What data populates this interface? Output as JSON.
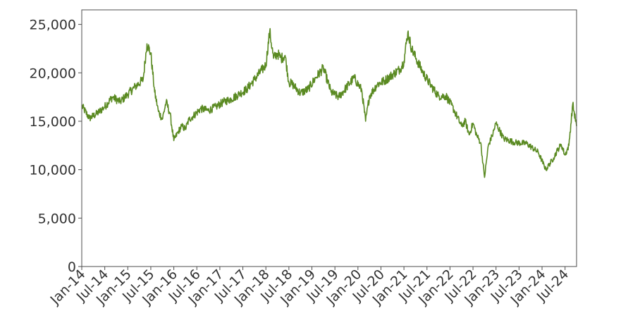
{
  "chart_data": {
    "type": "line",
    "title": "",
    "xlabel": "",
    "ylabel": "",
    "grid": false,
    "legend": "none",
    "line_color": "#5a8a22",
    "x_range": [
      "2014-01",
      "2024-10"
    ],
    "ylim": [
      0,
      26500
    ],
    "y_ticks": [
      0,
      5000,
      10000,
      15000,
      20000,
      25000
    ],
    "y_tick_labels": [
      "0",
      "5,000",
      "10,000",
      "15,000",
      "20,000",
      "25,000"
    ],
    "x_tick_labels": [
      "Jan-14",
      "Jul-14",
      "Jan-15",
      "Jul-15",
      "Jan-16",
      "Jul-16",
      "Jan-17",
      "Jul-17",
      "Jan-18",
      "Jul-18",
      "Jan-19",
      "Jul-19",
      "Jan-20",
      "Jul-20",
      "Jan-21",
      "Jul-21",
      "Jan-22",
      "Jul-22",
      "Jan-23",
      "Jul-23",
      "Jan-24",
      "Jul-24"
    ],
    "series": [
      {
        "x": [
          "2014-01",
          "2014-03",
          "2014-05",
          "2014-07",
          "2014-09",
          "2014-11",
          "2015-01",
          "2015-03",
          "2015-05",
          "2015-06",
          "2015-07",
          "2015-08",
          "2015-09",
          "2015-10",
          "2015-11",
          "2015-12",
          "2016-01",
          "2016-02",
          "2016-03",
          "2016-04",
          "2016-05",
          "2016-06",
          "2016-08",
          "2016-10",
          "2016-12",
          "2017-02",
          "2017-04",
          "2017-06",
          "2017-08",
          "2017-10",
          "2017-12",
          "2018-01",
          "2018-02",
          "2018-03",
          "2018-04",
          "2018-05",
          "2018-06",
          "2018-07",
          "2018-08",
          "2018-10",
          "2018-12",
          "2019-02",
          "2019-04",
          "2019-06",
          "2019-08",
          "2019-10",
          "2019-12",
          "2020-02",
          "2020-03",
          "2020-04",
          "2020-06",
          "2020-08",
          "2020-10",
          "2020-12",
          "2021-01",
          "2021-02",
          "2021-03",
          "2021-04",
          "2021-06",
          "2021-08",
          "2021-10",
          "2021-12",
          "2022-02",
          "2022-04",
          "2022-05",
          "2022-06",
          "2022-07",
          "2022-08",
          "2022-09",
          "2022-10",
          "2022-11",
          "2022-12",
          "2023-01",
          "2023-03",
          "2023-06",
          "2023-09",
          "2023-12",
          "2024-02",
          "2024-04",
          "2024-05",
          "2024-06",
          "2024-07",
          "2024-08",
          "2024-09",
          "2024-10"
        ],
        "y": [
          16600,
          15300,
          15800,
          16500,
          17500,
          17000,
          17800,
          18600,
          19300,
          23000,
          22000,
          18000,
          16000,
          15200,
          17000,
          15800,
          13000,
          13800,
          14500,
          14200,
          15200,
          15500,
          16300,
          16100,
          16500,
          17000,
          17300,
          17800,
          18300,
          19300,
          20300,
          20800,
          24300,
          21500,
          22000,
          21500,
          21800,
          19000,
          18800,
          17900,
          18300,
          19500,
          20500,
          18000,
          17500,
          18500,
          19500,
          18200,
          15000,
          17600,
          18800,
          19200,
          19800,
          20400,
          21200,
          24200,
          22500,
          21600,
          20000,
          18700,
          17600,
          17600,
          16200,
          14500,
          15000,
          13600,
          14800,
          13500,
          12800,
          9200,
          12500,
          13500,
          14800,
          13200,
          12800,
          12700,
          11800,
          10000,
          11200,
          12000,
          12600,
          11500,
          12500,
          16800,
          14500
        ]
      }
    ]
  }
}
